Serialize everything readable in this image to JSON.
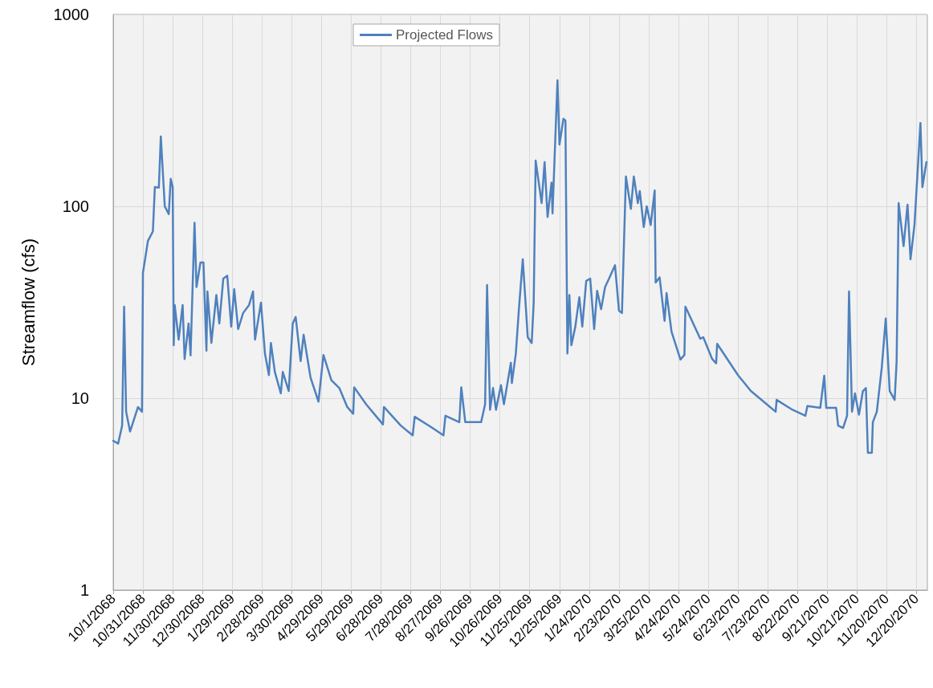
{
  "chart_data": {
    "type": "line",
    "ylabel": "Streamflow (cfs)",
    "log": "y",
    "grid": true,
    "legend": "top",
    "marker": "none",
    "line_style": "solid",
    "xlim": [
      "2068-10-01",
      "2070-12-31"
    ],
    "ylim": [
      1,
      1000
    ],
    "yticks": [
      1,
      10,
      100,
      1000
    ],
    "xticks": [
      {
        "value": "2068-10-01",
        "label": "10/1/2068"
      },
      {
        "value": "2068-10-31",
        "label": "10/31/2068"
      },
      {
        "value": "2068-11-30",
        "label": "11/30/2068"
      },
      {
        "value": "2068-12-30",
        "label": "12/30/2068"
      },
      {
        "value": "2069-01-29",
        "label": "1/29/2069"
      },
      {
        "value": "2069-02-28",
        "label": "2/28/2069"
      },
      {
        "value": "2069-03-30",
        "label": "3/30/2069"
      },
      {
        "value": "2069-04-29",
        "label": "4/29/2069"
      },
      {
        "value": "2069-05-29",
        "label": "5/29/2069"
      },
      {
        "value": "2069-06-28",
        "label": "6/28/2069"
      },
      {
        "value": "2069-07-28",
        "label": "7/28/2069"
      },
      {
        "value": "2069-08-27",
        "label": "8/27/2069"
      },
      {
        "value": "2069-09-26",
        "label": "9/26/2069"
      },
      {
        "value": "2069-10-26",
        "label": "10/26/2069"
      },
      {
        "value": "2069-11-25",
        "label": "11/25/2069"
      },
      {
        "value": "2069-12-25",
        "label": "12/25/2069"
      },
      {
        "value": "2070-01-24",
        "label": "1/24/2070"
      },
      {
        "value": "2070-02-23",
        "label": "2/23/2070"
      },
      {
        "value": "2070-03-25",
        "label": "3/25/2070"
      },
      {
        "value": "2070-04-24",
        "label": "4/24/2070"
      },
      {
        "value": "2070-05-24",
        "label": "5/24/2070"
      },
      {
        "value": "2070-06-23",
        "label": "6/23/2070"
      },
      {
        "value": "2070-07-23",
        "label": "7/23/2070"
      },
      {
        "value": "2070-08-22",
        "label": "8/22/2070"
      },
      {
        "value": "2070-09-21",
        "label": "9/21/2070"
      },
      {
        "value": "2070-10-21",
        "label": "10/21/2070"
      },
      {
        "value": "2070-11-20",
        "label": "11/20/2070"
      },
      {
        "value": "2070-12-20",
        "label": "12/20/2070"
      }
    ],
    "x": [
      "2068-10-01",
      "2068-10-06",
      "2068-10-10",
      "2068-10-12",
      "2068-10-14",
      "2068-10-18",
      "2068-10-26",
      "2068-10-30",
      "2068-10-31",
      "2068-11-05",
      "2068-11-10",
      "2068-11-12",
      "2068-11-16",
      "2068-11-18",
      "2068-11-22",
      "2068-11-26",
      "2068-11-28",
      "2068-11-30",
      "2068-12-01",
      "2068-12-02",
      "2068-12-06",
      "2068-12-10",
      "2068-12-12",
      "2068-12-16",
      "2068-12-18",
      "2068-12-22",
      "2068-12-24",
      "2068-12-28",
      "2068-12-31",
      "2069-01-03",
      "2069-01-04",
      "2069-01-08",
      "2069-01-13",
      "2069-01-16",
      "2069-01-20",
      "2069-01-24",
      "2069-01-28",
      "2069-01-31",
      "2069-02-04",
      "2069-02-09",
      "2069-02-15",
      "2069-02-19",
      "2069-02-21",
      "2069-02-27",
      "2069-03-03",
      "2069-03-07",
      "2069-03-09",
      "2069-03-13",
      "2069-03-19",
      "2069-03-21",
      "2069-03-27",
      "2069-03-31",
      "2069-04-03",
      "2069-04-08",
      "2069-04-11",
      "2069-04-18",
      "2069-04-26",
      "2069-05-01",
      "2069-05-09",
      "2069-05-17",
      "2069-05-25",
      "2069-05-31",
      "2069-06-01",
      "2069-06-13",
      "2069-06-30",
      "2069-07-01",
      "2069-07-18",
      "2069-07-30",
      "2069-08-01",
      "2069-08-17",
      "2069-08-30",
      "2069-09-01",
      "2069-09-15",
      "2069-09-17",
      "2069-09-21",
      "2069-10-07",
      "2069-10-11",
      "2069-10-13",
      "2069-10-16",
      "2069-10-19",
      "2069-10-22",
      "2069-10-27",
      "2069-10-30",
      "2069-11-06",
      "2069-11-07",
      "2069-11-11",
      "2069-11-14",
      "2069-11-18",
      "2069-11-23",
      "2069-11-27",
      "2069-11-29",
      "2069-12-01",
      "2069-12-07",
      "2069-12-10",
      "2069-12-13",
      "2069-12-17",
      "2069-12-18",
      "2069-12-23",
      "2069-12-25",
      "2069-12-29",
      "2069-12-31",
      "2070-01-02",
      "2070-01-04",
      "2070-01-06",
      "2070-01-10",
      "2070-01-14",
      "2070-01-17",
      "2070-01-21",
      "2070-01-25",
      "2070-01-29",
      "2070-02-01",
      "2070-02-05",
      "2070-02-09",
      "2070-02-13",
      "2070-02-19",
      "2070-02-23",
      "2070-02-26",
      "2070-03-02",
      "2070-03-07",
      "2070-03-10",
      "2070-03-14",
      "2070-03-16",
      "2070-03-20",
      "2070-03-23",
      "2070-03-27",
      "2070-03-31",
      "2070-04-01",
      "2070-04-05",
      "2070-04-10",
      "2070-04-12",
      "2070-04-17",
      "2070-04-26",
      "2070-04-30",
      "2070-05-01",
      "2070-05-16",
      "2070-05-19",
      "2070-05-28",
      "2070-06-01",
      "2070-06-02",
      "2070-06-23",
      "2070-07-06",
      "2070-07-31",
      "2070-08-01",
      "2070-08-17",
      "2070-08-30",
      "2070-09-01",
      "2070-09-14",
      "2070-09-18",
      "2070-09-20",
      "2070-09-30",
      "2070-10-02",
      "2070-10-07",
      "2070-10-11",
      "2070-10-13",
      "2070-10-16",
      "2070-10-19",
      "2070-10-23",
      "2070-10-27",
      "2070-10-30",
      "2070-11-01",
      "2070-11-05",
      "2070-11-06",
      "2070-11-10",
      "2070-11-15",
      "2070-11-19",
      "2070-11-23",
      "2070-11-28",
      "2070-11-30",
      "2070-12-02",
      "2070-12-07",
      "2070-12-11",
      "2070-12-14",
      "2070-12-18",
      "2070-12-24",
      "2070-12-26",
      "2070-12-30"
    ],
    "series": [
      {
        "name": "Projected Flows",
        "color": "#4f81bd",
        "values": [
          6.0,
          5.8,
          7.2,
          30,
          8.5,
          6.7,
          9.0,
          8.5,
          45,
          66,
          74,
          126,
          125,
          231,
          100,
          91,
          139,
          126,
          18.9,
          30.6,
          20.2,
          30.6,
          16,
          24.5,
          16.7,
          82,
          38,
          51,
          51,
          17.7,
          36,
          19.4,
          34.5,
          24.5,
          42,
          43.5,
          23.6,
          37,
          22.9,
          27.8,
          30.6,
          36,
          20.2,
          31.5,
          17.1,
          13.2,
          19.4,
          13.7,
          10.6,
          13.7,
          10.9,
          24.5,
          26.5,
          15.6,
          21.4,
          12.8,
          9.6,
          16.8,
          12.4,
          11.3,
          9.0,
          8.3,
          11.4,
          9.3,
          7.3,
          9.0,
          7.2,
          6.4,
          8.0,
          7.1,
          6.4,
          8.1,
          7.5,
          11.4,
          7.5,
          7.5,
          9.3,
          38.9,
          8.7,
          11.3,
          8.7,
          11.7,
          9.3,
          15.3,
          12.0,
          17.1,
          28.6,
          53,
          20.8,
          19.4,
          31.5,
          173,
          104,
          170,
          88,
          133,
          92,
          454,
          210,
          286,
          280,
          17.1,
          34.5,
          18.9,
          23.6,
          33.6,
          23.6,
          40.9,
          42,
          22.9,
          36.3,
          29.1,
          38,
          42,
          49.3,
          28.6,
          27.8,
          143,
          97,
          143,
          104,
          120,
          78,
          100,
          80,
          121,
          40,
          42.6,
          25.3,
          35.3,
          22.2,
          15.9,
          16.8,
          30,
          20.4,
          20.8,
          16,
          15.2,
          19.2,
          13.2,
          10.9,
          8.5,
          9.8,
          8.7,
          8.1,
          9.1,
          8.9,
          13.1,
          8.9,
          8.9,
          7.2,
          7.0,
          8.1,
          36,
          8.5,
          10.6,
          8.2,
          10.9,
          11.3,
          5.2,
          5.2,
          7.5,
          8.5,
          14.4,
          26,
          10.9,
          9.8,
          15.6,
          104,
          62,
          102,
          53,
          80,
          272,
          126,
          170
        ]
      }
    ]
  }
}
